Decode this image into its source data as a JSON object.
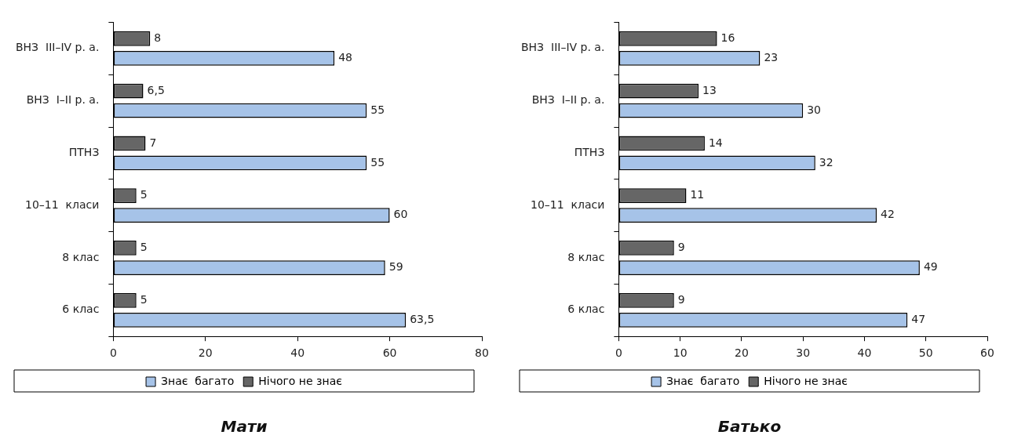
{
  "chart_data": [
    {
      "type": "bar",
      "orientation": "horizontal",
      "title": "Мати",
      "categories": [
        "ВНЗ  III–IV р. а.",
        "ВНЗ  I–II р. а.",
        "ПТНЗ",
        "10–11  класи",
        "8 клас",
        "6 клас"
      ],
      "series": [
        {
          "name": "Знає  багато",
          "color": "#a6c3e8",
          "values": [
            48,
            55,
            55,
            60,
            59,
            63.5
          ],
          "value_labels": [
            "48",
            "55",
            "55",
            "60",
            "59",
            "63,5"
          ]
        },
        {
          "name": "Нічого не знає",
          "color": "#666666",
          "values": [
            8,
            6.5,
            7,
            5,
            5,
            5
          ],
          "value_labels": [
            "8",
            "6,5",
            "7",
            "5",
            "5",
            "5"
          ]
        }
      ],
      "xlim": [
        0,
        80
      ],
      "xticks": [
        0,
        20,
        40,
        60,
        80
      ],
      "grid": false,
      "legend": "bottom"
    },
    {
      "type": "bar",
      "orientation": "horizontal",
      "title": "Батько",
      "categories": [
        "ВНЗ  III–IV р. а.",
        "ВНЗ  I–II р. а.",
        "ПТНЗ",
        "10–11  класи",
        "8 клас",
        "6 клас"
      ],
      "series": [
        {
          "name": "Знає  багато",
          "color": "#a6c3e8",
          "values": [
            23,
            30,
            32,
            42,
            49,
            47
          ],
          "value_labels": [
            "23",
            "30",
            "32",
            "42",
            "49",
            "47"
          ]
        },
        {
          "name": "Нічого не знає",
          "color": "#666666",
          "values": [
            16,
            13,
            14,
            11,
            9,
            9
          ],
          "value_labels": [
            "16",
            "13",
            "14",
            "11",
            "9",
            "9"
          ]
        }
      ],
      "xlim": [
        0,
        60
      ],
      "xticks": [
        0,
        10,
        20,
        30,
        40,
        50,
        60
      ],
      "grid": false,
      "legend": "bottom"
    }
  ]
}
